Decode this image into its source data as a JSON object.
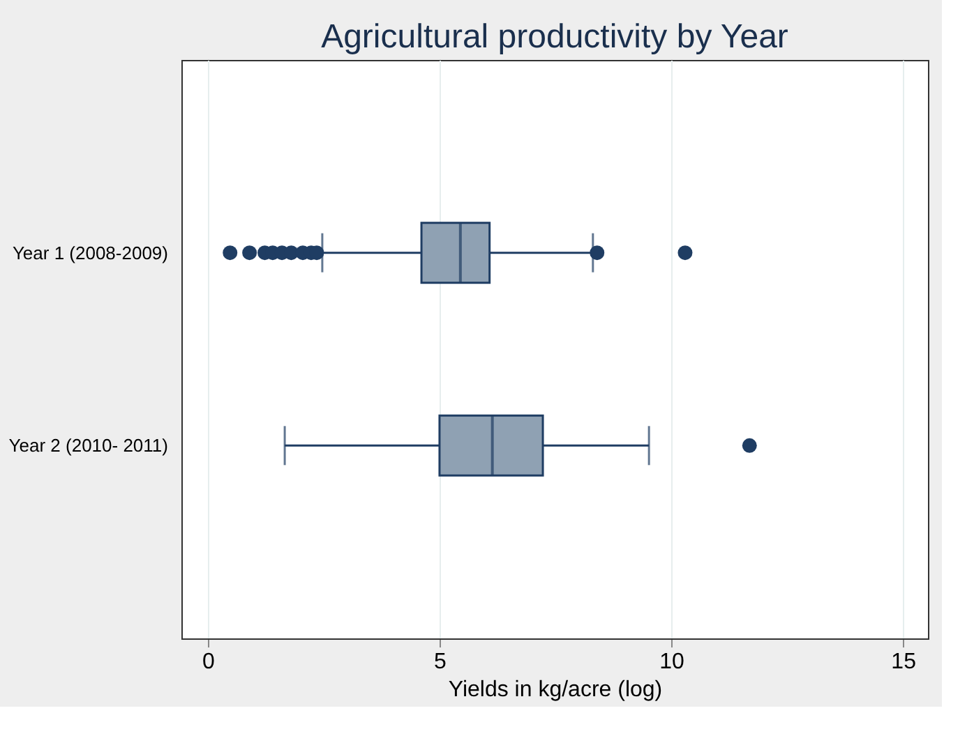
{
  "chart_data": {
    "type": "box",
    "orientation": "horizontal",
    "title": "Agricultural productivity by Year",
    "xlabel": "Yields in kg/acre (log)",
    "categories": [
      "Year 1 (2008-2009)",
      "Year 2 (2010- 2011)"
    ],
    "series": [
      {
        "color": "#8fa1b3",
        "boxes": [
          {
            "low": 2.47,
            "q1": 4.61,
            "median": 5.45,
            "q3": 6.08,
            "high": 8.31,
            "outliers": [
              0.48,
              0.9,
              1.23,
              1.4,
              1.6,
              1.8,
              2.05,
              2.23,
              2.35,
              8.4,
              10.3
            ]
          },
          {
            "low": 1.66,
            "q1": 5.0,
            "median": 6.14,
            "q3": 7.23,
            "high": 9.52,
            "outliers": [
              11.69
            ]
          }
        ]
      }
    ],
    "xlim": [
      -0.57,
      15.54
    ],
    "xticks": [
      0,
      5,
      10,
      15
    ],
    "grid": "x"
  }
}
